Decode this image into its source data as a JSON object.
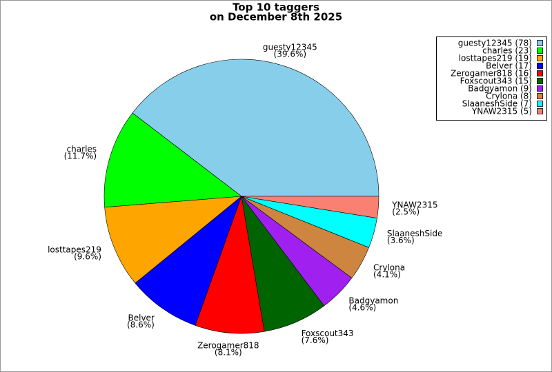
{
  "chart_data": {
    "type": "pie",
    "title": "Top 10 taggers",
    "subtitle": "on December 8th 2025",
    "categories": [
      "guesty12345",
      "charles",
      "losttapes219",
      "Belver",
      "Zerogamer818",
      "Foxscout343",
      "Badgyamon",
      "Crylona",
      "SlaaneshSide",
      "YNAW2315"
    ],
    "values": [
      78,
      23,
      19,
      17,
      16,
      15,
      9,
      8,
      7,
      5
    ],
    "value_labels": [
      "(39.6%)",
      "(11.7%)",
      "(9.6%)",
      "(8.6%)",
      "(8.1%)",
      "(7.6%)",
      "(4.6%)",
      "(4.1%)",
      "(3.6%)",
      "(2.5%)"
    ],
    "legend_labels": [
      "guesty12345 (78)",
      "charles (23)",
      "losttapes219 (19)",
      "Belver (17)",
      "Zerogamer818 (16)",
      "Foxscout343 (15)",
      "Badgyamon (9)",
      "Crylona (8)",
      "SlaaneshSide (7)",
      "YNAW2315 (5)"
    ],
    "colors": [
      "#87ceeb",
      "#00ff00",
      "#ffa500",
      "#0000ff",
      "#ff0000",
      "#006400",
      "#a020f0",
      "#cd853f",
      "#00ffff",
      "#fa8072"
    ],
    "legend": "upper right"
  }
}
